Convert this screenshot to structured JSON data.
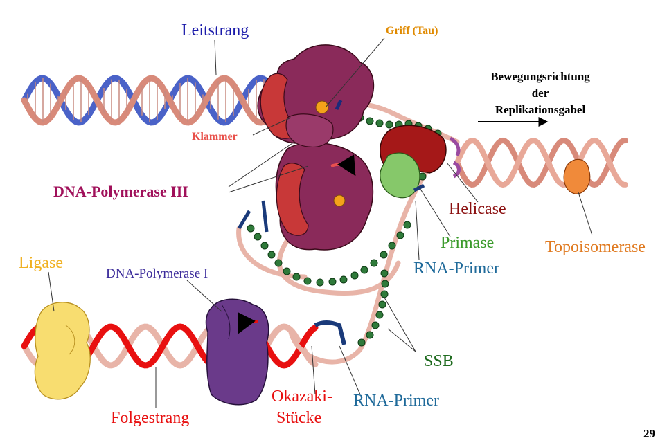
{
  "labels": {
    "leitstrang": "Leitstrang",
    "griff": "Griff (Tau)",
    "bewegung_1": "Bewegungsrichtung",
    "bewegung_2": "der",
    "bewegung_3": "Replikationsgabel",
    "klammer": "Klammer",
    "polymerase3": "DNA-Polymerase III",
    "helicase": "Helicase",
    "primase": "Primase",
    "topoisomerase": "Topoisomerase",
    "rna_primer_top": "RNA-Primer",
    "ligase": "Ligase",
    "polymerase1": "DNA-Polymerase I",
    "ssb": "SSB",
    "okazaki_1": "Okazaki-",
    "okazaki_2": "Stücke",
    "rna_primer_bottom": "RNA-Primer",
    "folgestrang": "Folgestrang",
    "page_number": "29"
  },
  "colors": {
    "leitstrang": "#1b1baa",
    "griff": "#e08a00",
    "klammer": "#e8504a",
    "polymerase3": "#a0105a",
    "helicase": "#8b1010",
    "primase": "#3a9a2a",
    "topoisomerase": "#e07a20",
    "rna_primer": "#1f6a9a",
    "ligase": "#f0b020",
    "polymerase1": "#3a2a9a",
    "ssb": "#1e6a1e",
    "okazaki": "#e81010",
    "folgestrang": "#e81010",
    "strand_pink": "#d88a7a",
    "strand_blue": "#4a62c8",
    "pol3_body": "#8a2a5a",
    "clamp": "#c83838",
    "pol1_body": "#6a3a8a",
    "ligase_body": "#f8dd70"
  }
}
